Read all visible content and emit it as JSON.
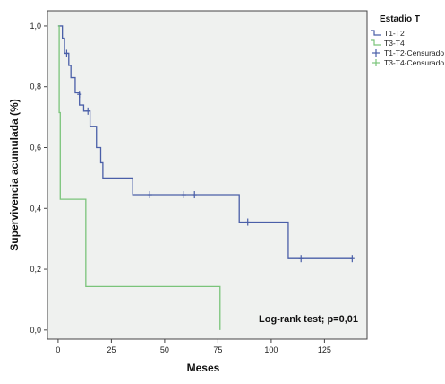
{
  "chart_data": {
    "type": "line",
    "subtype": "kaplan-meier-step",
    "title": "",
    "xlabel": "Meses",
    "ylabel": "Supervivencia acumulada (%)",
    "xlim": [
      -5,
      145
    ],
    "ylim": [
      -0.03,
      1.05
    ],
    "xticks": [
      0,
      25,
      50,
      75,
      100,
      125
    ],
    "xtick_labels": [
      "0",
      "25",
      "50",
      "75",
      "100",
      "125"
    ],
    "yticks": [
      0.0,
      0.2,
      0.4,
      0.6,
      0.8,
      1.0
    ],
    "ytick_labels": [
      "0,0",
      "0,2",
      "0,4",
      "0,6",
      "0,8",
      "1,0"
    ],
    "grid": false,
    "plot_background": "#eff1ef",
    "legend": {
      "title": "Estadio T",
      "placement": "outside-right-top",
      "entries": [
        {
          "label": "T1-T2",
          "kind": "line",
          "color": "#4a5fa8"
        },
        {
          "label": "T3-T4",
          "kind": "line",
          "color": "#7ac47a"
        },
        {
          "label": "T1-T2-Censurado",
          "kind": "censor",
          "color": "#4a5fa8"
        },
        {
          "label": "T3-T4-Censurado",
          "kind": "censor",
          "color": "#7ac47a"
        }
      ]
    },
    "series": [
      {
        "name": "T1-T2",
        "color": "#4a5fa8",
        "x": [
          0,
          2,
          3,
          5,
          6,
          8,
          10,
          12,
          15,
          18,
          20,
          21,
          35,
          85,
          108,
          138
        ],
        "y": [
          1.0,
          0.96,
          0.91,
          0.87,
          0.83,
          0.78,
          0.74,
          0.72,
          0.67,
          0.6,
          0.55,
          0.5,
          0.445,
          0.355,
          0.235,
          0.235
        ],
        "censored": [
          {
            "x": 4,
            "y": 0.91
          },
          {
            "x": 10,
            "y": 0.775
          },
          {
            "x": 14,
            "y": 0.72
          },
          {
            "x": 43,
            "y": 0.445
          },
          {
            "x": 59,
            "y": 0.445
          },
          {
            "x": 64,
            "y": 0.445
          },
          {
            "x": 89,
            "y": 0.355
          },
          {
            "x": 114,
            "y": 0.235
          },
          {
            "x": 138,
            "y": 0.235
          }
        ]
      },
      {
        "name": "T3-T4",
        "color": "#7ac47a",
        "x": [
          0,
          0.5,
          1,
          13,
          76
        ],
        "y": [
          1.0,
          0.715,
          0.43,
          0.143,
          0.0
        ],
        "censored": []
      }
    ],
    "annotations": [
      {
        "text": "Log-rank test; p=0,01",
        "placement": "lower-right"
      }
    ]
  }
}
